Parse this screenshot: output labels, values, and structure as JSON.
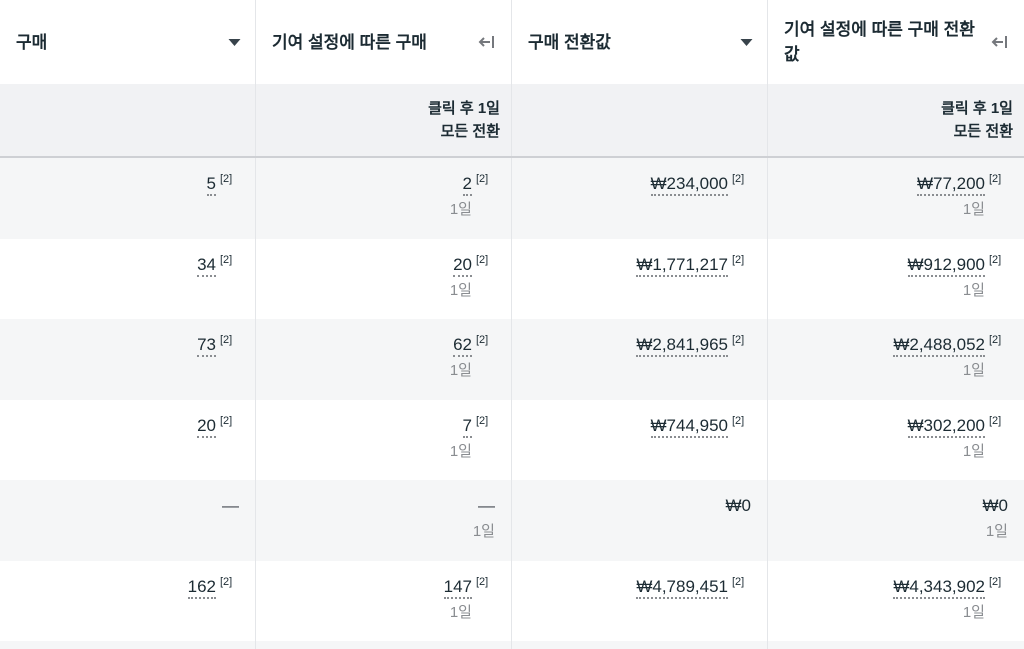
{
  "colors": {
    "header_text": "#1c2b33",
    "value_text": "#1c2b33",
    "muted_text": "#8a8d91",
    "stripe_bg": "#f5f6f7",
    "subheader_bg": "#f1f2f4",
    "divider": "#e4e6e9",
    "separator": "#ced0d4",
    "icon_gray": "#75787d"
  },
  "table": {
    "columns": [
      {
        "label": "구매",
        "icon": "sort-caret-down",
        "subheader_lines": []
      },
      {
        "label": "기여 설정에 따른 구매",
        "icon": "collapse-left-arrow",
        "subheader_lines": [
          "클릭 후 1일",
          "모든 전환"
        ]
      },
      {
        "label": "구매 전환값",
        "icon": "sort-caret-down",
        "subheader_lines": []
      },
      {
        "label": "기여 설정에 따른 구매 전환값",
        "icon": "collapse-left-arrow",
        "subheader_lines": [
          "클릭 후 1일",
          "모든 전환"
        ]
      }
    ],
    "footnote_marker": "[2]",
    "attribution_window_label": "1일",
    "rows": [
      {
        "cells": [
          {
            "value": "5",
            "superscript": "[2]",
            "underlined": true
          },
          {
            "value": "2",
            "superscript": "[2]",
            "underlined": true,
            "subtext": "1일"
          },
          {
            "value": "₩234,000",
            "superscript": "[2]",
            "underlined": true
          },
          {
            "value": "₩77,200",
            "superscript": "[2]",
            "underlined": true,
            "subtext": "1일"
          }
        ]
      },
      {
        "cells": [
          {
            "value": "34",
            "superscript": "[2]",
            "underlined": true
          },
          {
            "value": "20",
            "superscript": "[2]",
            "underlined": true,
            "subtext": "1일"
          },
          {
            "value": "₩1,771,217",
            "superscript": "[2]",
            "underlined": true
          },
          {
            "value": "₩912,900",
            "superscript": "[2]",
            "underlined": true,
            "subtext": "1일"
          }
        ]
      },
      {
        "cells": [
          {
            "value": "73",
            "superscript": "[2]",
            "underlined": true
          },
          {
            "value": "62",
            "superscript": "[2]",
            "underlined": true,
            "subtext": "1일"
          },
          {
            "value": "₩2,841,965",
            "superscript": "[2]",
            "underlined": true
          },
          {
            "value": "₩2,488,052",
            "superscript": "[2]",
            "underlined": true,
            "subtext": "1일"
          }
        ]
      },
      {
        "cells": [
          {
            "value": "20",
            "superscript": "[2]",
            "underlined": true
          },
          {
            "value": "7",
            "superscript": "[2]",
            "underlined": true,
            "subtext": "1일"
          },
          {
            "value": "₩744,950",
            "superscript": "[2]",
            "underlined": true
          },
          {
            "value": "₩302,200",
            "superscript": "[2]",
            "underlined": true,
            "subtext": "1일"
          }
        ]
      },
      {
        "cells": [
          {
            "value": "—",
            "dash": true
          },
          {
            "value": "—",
            "dash": true,
            "subtext": "1일"
          },
          {
            "value": "₩0"
          },
          {
            "value": "₩0",
            "subtext": "1일"
          }
        ]
      },
      {
        "cells": [
          {
            "value": "162",
            "superscript": "[2]",
            "underlined": true
          },
          {
            "value": "147",
            "superscript": "[2]",
            "underlined": true,
            "subtext": "1일"
          },
          {
            "value": "₩4,789,451",
            "superscript": "[2]",
            "underlined": true
          },
          {
            "value": "₩4,343,902",
            "superscript": "[2]",
            "underlined": true,
            "subtext": "1일"
          }
        ]
      }
    ]
  }
}
